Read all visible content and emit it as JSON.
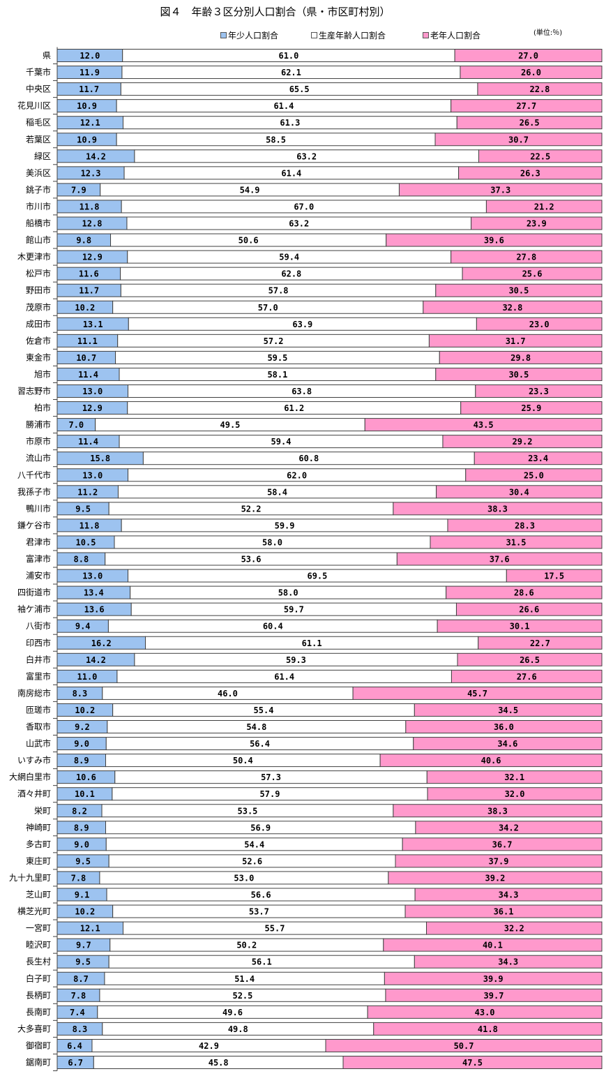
{
  "title": "図４　年齢３区分別人口割合（県・市区町村別）",
  "unit": "(単位:％)",
  "colors": {
    "young": "#9dc3f0",
    "working": "#ffffff",
    "old": "#ff99cc",
    "border": "#404040"
  },
  "chart_data": {
    "type": "bar",
    "stacked": true,
    "orientation": "horizontal",
    "xlim": [
      0,
      100
    ],
    "legend_position": "top",
    "grid": false,
    "categories": [
      "県",
      "千葉市",
      "中央区",
      "花見川区",
      "稲毛区",
      "若葉区",
      "緑区",
      "美浜区",
      "銚子市",
      "市川市",
      "船橋市",
      "館山市",
      "木更津市",
      "松戸市",
      "野田市",
      "茂原市",
      "成田市",
      "佐倉市",
      "東金市",
      "旭市",
      "習志野市",
      "柏市",
      "勝浦市",
      "市原市",
      "流山市",
      "八千代市",
      "我孫子市",
      "鴨川市",
      "鎌ケ谷市",
      "君津市",
      "富津市",
      "浦安市",
      "四街道市",
      "袖ケ浦市",
      "八街市",
      "印西市",
      "白井市",
      "富里市",
      "南房総市",
      "匝瑳市",
      "香取市",
      "山武市",
      "いすみ市",
      "大網白里市",
      "酒々井町",
      "栄町",
      "神崎町",
      "多古町",
      "東庄町",
      "九十九里町",
      "芝山町",
      "横芝光町",
      "一宮町",
      "睦沢町",
      "長生村",
      "白子町",
      "長柄町",
      "長南町",
      "大多喜町",
      "御宿町",
      "鋸南町"
    ],
    "series": [
      {
        "name": "年少人口割合",
        "values": [
          "12.0",
          "11.9",
          "11.7",
          "10.9",
          "12.1",
          "10.9",
          "14.2",
          "12.3",
          "7.9",
          "11.8",
          "12.8",
          "9.8",
          "12.9",
          "11.6",
          "11.7",
          "10.2",
          "13.1",
          "11.1",
          "10.7",
          "11.4",
          "13.0",
          "12.9",
          "7.0",
          "11.4",
          "15.8",
          "13.0",
          "11.2",
          "9.5",
          "11.8",
          "10.5",
          "8.8",
          "13.0",
          "13.4",
          "13.6",
          "9.4",
          "16.2",
          "14.2",
          "11.0",
          "8.3",
          "10.2",
          "9.2",
          "9.0",
          "8.9",
          "10.6",
          "10.1",
          "8.2",
          "8.9",
          "9.0",
          "9.5",
          "7.8",
          "9.1",
          "10.2",
          "12.1",
          "9.7",
          "9.5",
          "8.7",
          "7.8",
          "7.4",
          "8.3",
          "6.4",
          "6.7"
        ]
      },
      {
        "name": "生産年齢人口割合",
        "values": [
          "61.0",
          "62.1",
          "65.5",
          "61.4",
          "61.3",
          "58.5",
          "63.2",
          "61.4",
          "54.9",
          "67.0",
          "63.2",
          "50.6",
          "59.4",
          "62.8",
          "57.8",
          "57.0",
          "63.9",
          "57.2",
          "59.5",
          "58.1",
          "63.8",
          "61.2",
          "49.5",
          "59.4",
          "60.8",
          "62.0",
          "58.4",
          "52.2",
          "59.9",
          "58.0",
          "53.6",
          "69.5",
          "58.0",
          "59.7",
          "60.4",
          "61.1",
          "59.3",
          "61.4",
          "46.0",
          "55.4",
          "54.8",
          "56.4",
          "50.4",
          "57.3",
          "57.9",
          "53.5",
          "56.9",
          "54.4",
          "52.6",
          "53.0",
          "56.6",
          "53.7",
          "55.7",
          "50.2",
          "56.1",
          "51.4",
          "52.5",
          "49.6",
          "49.8",
          "42.9",
          "45.8"
        ]
      },
      {
        "name": "老年人口割合",
        "values": [
          "27.0",
          "26.0",
          "22.8",
          "27.7",
          "26.5",
          "30.7",
          "22.5",
          "26.3",
          "37.3",
          "21.2",
          "23.9",
          "39.6",
          "27.8",
          "25.6",
          "30.5",
          "32.8",
          "23.0",
          "31.7",
          "29.8",
          "30.5",
          "23.3",
          "25.9",
          "43.5",
          "29.2",
          "23.4",
          "25.0",
          "30.4",
          "38.3",
          "28.3",
          "31.5",
          "37.6",
          "17.5",
          "28.6",
          "26.6",
          "30.1",
          "22.7",
          "26.5",
          "27.6",
          "45.7",
          "34.5",
          "36.0",
          "34.6",
          "40.6",
          "32.1",
          "32.0",
          "38.3",
          "34.2",
          "36.7",
          "37.9",
          "39.2",
          "34.3",
          "36.1",
          "32.2",
          "40.1",
          "34.3",
          "39.9",
          "39.7",
          "43.0",
          "41.8",
          "50.7",
          "47.5"
        ]
      }
    ]
  }
}
